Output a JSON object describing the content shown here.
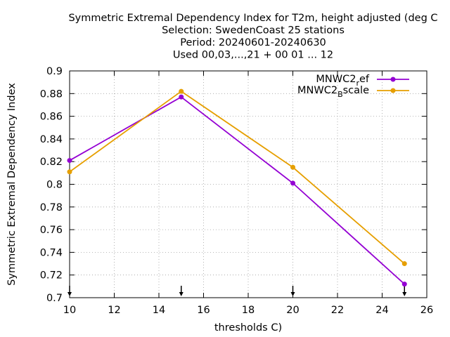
{
  "chart_data": {
    "type": "line",
    "title_lines": [
      "Symmetric Extremal Dependency Index  for T2m, height adjusted (deg C",
      "Selection: SwedenCoast     25 stations",
      "Period: 20240601-20240630",
      "Used 00,03,...,21 + 00 01 ... 12"
    ],
    "xlabel": "thresholds C)",
    "ylabel": "Symmetric Extremal Dependency Index",
    "xlim": [
      10,
      26
    ],
    "ylim": [
      0.7,
      0.9
    ],
    "x_ticks": [
      10,
      12,
      14,
      16,
      18,
      20,
      22,
      24,
      26
    ],
    "y_ticks": [
      0.7,
      0.72,
      0.74,
      0.76,
      0.78,
      0.8,
      0.82,
      0.84,
      0.86,
      0.88,
      0.9
    ],
    "x_tick_labels": [
      "10",
      "12",
      "14",
      "16",
      "18",
      "20",
      "22",
      "24",
      "26"
    ],
    "y_tick_labels": [
      "0.7",
      "0.72",
      "0.74",
      "0.76",
      "0.78",
      "0.8",
      "0.82",
      "0.84",
      "0.86",
      "0.88",
      "0.9"
    ],
    "grid": true,
    "legend_position": "top-right",
    "arrow_markers_x": [
      10,
      15,
      20,
      25
    ],
    "series": [
      {
        "name_main": "MNWC2",
        "name_sub": "r",
        "name_rest": "ef",
        "color": "#9400d3",
        "x": [
          10,
          15,
          20,
          25
        ],
        "y": [
          0.821,
          0.877,
          0.801,
          0.712
        ]
      },
      {
        "name_main": "MNWC2",
        "name_sub": "B",
        "name_rest": "scale",
        "color": "#e69f00",
        "x": [
          10,
          15,
          20,
          25
        ],
        "y": [
          0.811,
          0.882,
          0.815,
          0.73
        ]
      }
    ]
  }
}
